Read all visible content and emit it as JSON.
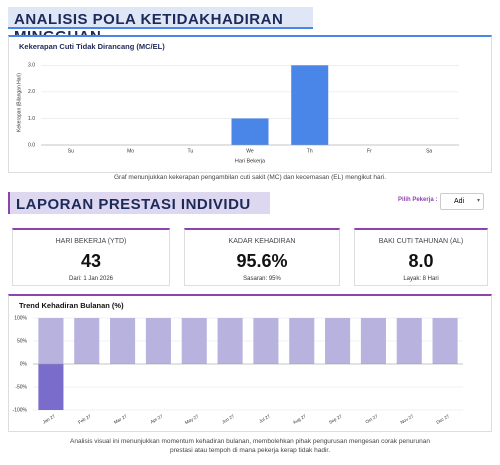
{
  "header": {
    "title": "ANALISIS POLA KETIDAKHADIRAN MINGGUAN"
  },
  "chart_data": [
    {
      "type": "bar",
      "title": "Kekerapan Cuti Tidak Dirancang (MC/EL)",
      "y_label": "Kekerapan (Bilangan Hari)",
      "x_label": "Hari Bekerja",
      "categories": [
        "Su",
        "Mo",
        "Tu",
        "We",
        "Th",
        "Fr",
        "Sa"
      ],
      "values": [
        0,
        0,
        0,
        1,
        3,
        0,
        0
      ],
      "color": "#4a86e8",
      "ylim": [
        0,
        3.2
      ],
      "yticks": [
        {
          "value": 0,
          "label": "0.0"
        },
        {
          "value": 1,
          "label": "1.0"
        },
        {
          "value": 2,
          "label": "2.0"
        },
        {
          "value": 3,
          "label": "3.0"
        }
      ],
      "grid": true
    },
    {
      "type": "bar",
      "title": "Trend Kehadiran Bulanan (%)",
      "categories": [
        "Jan 27",
        "Feb 27",
        "Mar 27",
        "Apr 27",
        "May 27",
        "Jun 27",
        "Jul 27",
        "Aug 27",
        "Sep 27",
        "Oct 27",
        "Nov 27",
        "Dec 27"
      ],
      "series": [
        {
          "color": "#b8b2df",
          "values": [
            100,
            100,
            100,
            100,
            100,
            100,
            100,
            100,
            100,
            100,
            100,
            100
          ]
        },
        {
          "color": "#7a6ccb",
          "values": [
            -100,
            0,
            0,
            0,
            0,
            0,
            0,
            0,
            0,
            0,
            0,
            0
          ]
        }
      ],
      "ylim": [
        -100,
        100
      ],
      "yticks": [
        {
          "value": -100,
          "label": "-100%"
        },
        {
          "value": -50,
          "label": "-50%"
        },
        {
          "value": 0,
          "label": "0%"
        },
        {
          "value": 50,
          "label": "50%"
        },
        {
          "value": 100,
          "label": "100%"
        }
      ],
      "grid": true
    }
  ],
  "caption1": "Graf menunjukkan kekerapan pengambilan cuti sakit (MC) dan kecemasan (EL) mengikut hari.",
  "section2": {
    "title": "LAPORAN PRESTASI INDIVIDU",
    "picker_label": "Pilih Pekerja :",
    "picker_value": "Adi"
  },
  "kpis": [
    {
      "label": "HARI BEKERJA (YTD)",
      "value": "43",
      "sub": "Dari: 1 Jan 2026"
    },
    {
      "label": "KADAR KEHADIRAN",
      "value": "95.6%",
      "sub": "Sasaran: 95%"
    },
    {
      "label": "BAKI CUTI TAHUNAN (AL)",
      "value": "8.0",
      "sub": "Layak: 8 Hari"
    }
  ],
  "caption2": "Analisis visual ini menunjukkan momentum kehadiran bulanan, membolehkan pihak pengurusan mengesan corak penurunan prestasi atau tempoh di mana pekerja kerap tidak hadir."
}
